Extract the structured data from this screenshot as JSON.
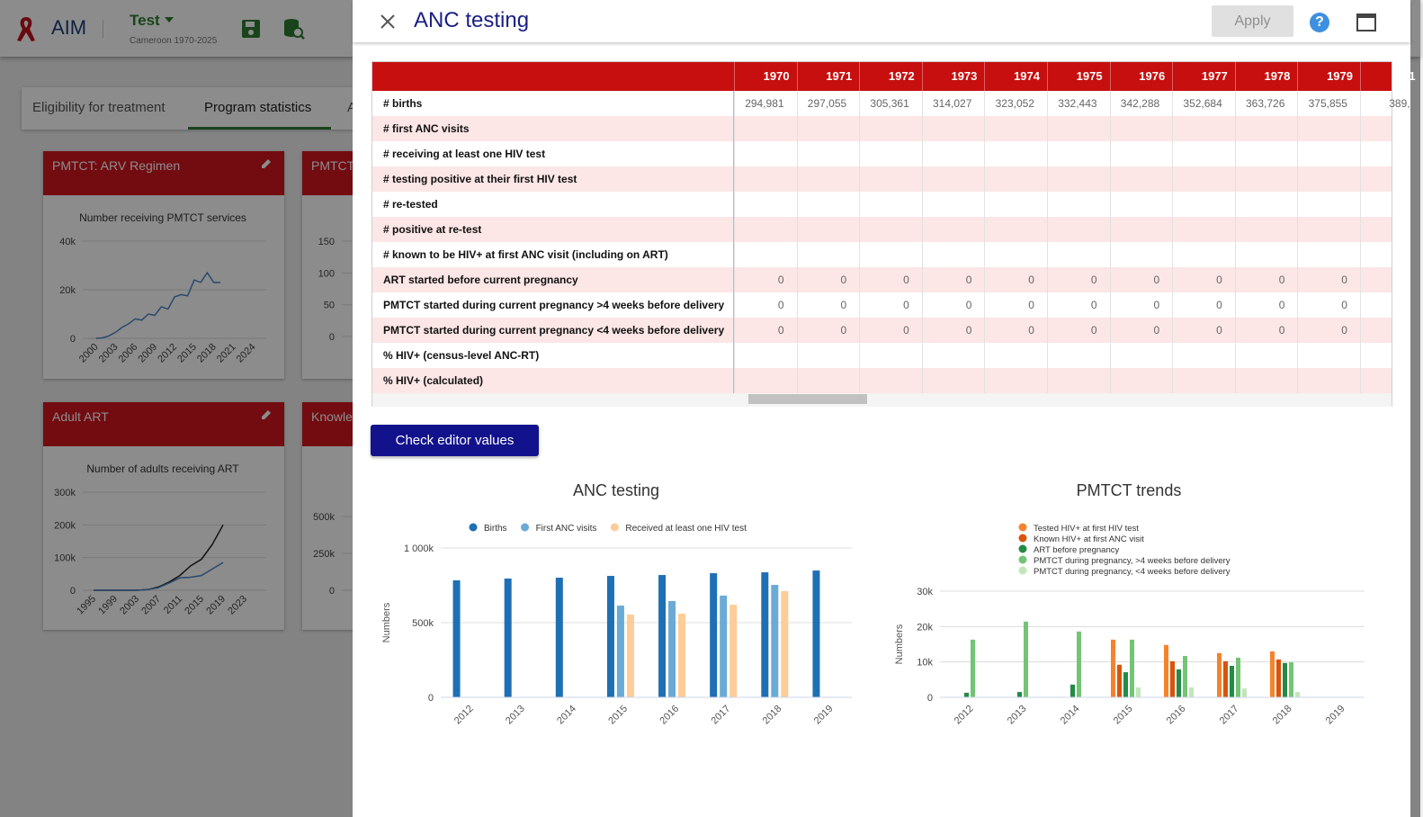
{
  "app": {
    "logo": "AIM",
    "project": "Test",
    "project_subtitle": "Cameroon 1970-2025",
    "tabs": [
      "Eligibility for treatment",
      "Program statistics",
      "A"
    ]
  },
  "cards": [
    {
      "title": "PMTCT: ARV Regimen"
    },
    {
      "title": "PMTCT"
    },
    {
      "title": "Adult ART"
    },
    {
      "title": "Knowle"
    }
  ],
  "panel": {
    "title": "ANC testing",
    "apply": "Apply",
    "help": "?",
    "check_button": "Check editor values",
    "table": {
      "columns": [
        "1970",
        "1971",
        "1972",
        "1973",
        "1974",
        "1975",
        "1976",
        "1977",
        "1978",
        "1979",
        "1"
      ],
      "rows": [
        {
          "label": "# births",
          "cells": [
            "294,981",
            "297,055",
            "305,361",
            "314,027",
            "323,052",
            "332,443",
            "342,288",
            "352,684",
            "363,726",
            "375,855",
            "389,"
          ]
        },
        {
          "label": "# first ANC visits"
        },
        {
          "label": "# receiving at least one HIV test"
        },
        {
          "label": "# testing positive at their first HIV test"
        },
        {
          "label": "# re-tested"
        },
        {
          "label": "# positive at re-test"
        },
        {
          "label": "# known to be HIV+ at first ANC visit (including on ART)"
        },
        {
          "label": "ART started before current pregnancy",
          "cells": [
            0,
            0,
            0,
            0,
            0,
            0,
            0,
            0,
            0,
            0
          ]
        },
        {
          "label": "PMTCT started during current pregnancy >4 weeks before delivery",
          "cells": [
            0,
            0,
            0,
            0,
            0,
            0,
            0,
            0,
            0,
            0
          ]
        },
        {
          "label": "PMTCT started during current pregnancy <4 weeks before delivery",
          "cells": [
            0,
            0,
            0,
            0,
            0,
            0,
            0,
            0,
            0,
            0
          ]
        },
        {
          "label": "% HIV+ (census-level ANC-RT)"
        },
        {
          "label": "% HIV+ (calculated)"
        }
      ]
    }
  },
  "chart_data": [
    {
      "type": "bar",
      "title": "ANC testing",
      "y_label": "Numbers",
      "categories": [
        "2012",
        "2013",
        "2014",
        "2015",
        "2016",
        "2017",
        "2018",
        "2019"
      ],
      "ylim": [
        0,
        1000000
      ],
      "yticks": [
        0,
        {
          "value": 500000,
          "label": "500k"
        },
        {
          "value": 1000000,
          "label": "1 000k"
        }
      ],
      "grid": true,
      "legend": "top",
      "series": [
        {
          "name": "Births",
          "color": "#1f6fb4",
          "values": [
            783000,
            795000,
            801000,
            813000,
            819000,
            831000,
            837000,
            849000
          ]
        },
        {
          "name": "First ANC visits",
          "color": "#6aaad6",
          "values": [
            null,
            null,
            null,
            614000,
            645000,
            681000,
            753000,
            null
          ]
        },
        {
          "name": "Received at least one HIV test",
          "color": "#fdcc98",
          "values": [
            null,
            null,
            null,
            554000,
            560000,
            620000,
            711000,
            null
          ]
        }
      ]
    },
    {
      "type": "bar",
      "title": "PMTCT trends",
      "y_label": "Numbers",
      "categories": [
        "2012",
        "2013",
        "2014",
        "2015",
        "2016",
        "2017",
        "2018",
        "2019"
      ],
      "ylim": [
        0,
        30000
      ],
      "yticks": [
        0,
        {
          "value": 10000,
          "label": "10k"
        },
        {
          "value": 20000,
          "label": "20k"
        },
        {
          "value": 30000,
          "label": "30k"
        }
      ],
      "grid": true,
      "legend": "top-left",
      "series": [
        {
          "name": "Tested HIV+ at first HIV test",
          "color": "#f5832e",
          "values": [
            null,
            null,
            null,
            16300,
            14800,
            12500,
            13000,
            null
          ]
        },
        {
          "name": "Known HIV+ at first ANC visit",
          "color": "#d9540b",
          "values": [
            null,
            null,
            null,
            9200,
            10200,
            10200,
            10700,
            null
          ]
        },
        {
          "name": "ART before pregnancy",
          "color": "#238b45",
          "values": [
            1300,
            1500,
            3600,
            7100,
            7900,
            8900,
            9700,
            null
          ]
        },
        {
          "name": "PMTCT during pregnancy, >4 weeks before delivery",
          "color": "#74c476",
          "values": [
            16300,
            21400,
            18600,
            16300,
            11700,
            11200,
            9900,
            null
          ]
        },
        {
          "name": "PMTCT during pregnancy, <4 weeks before delivery",
          "color": "#c2e6b9",
          "values": [
            null,
            null,
            null,
            2800,
            2800,
            2500,
            1500,
            null
          ]
        }
      ]
    },
    {
      "type": "line",
      "title": "Number receiving PMTCT services",
      "x": [
        2000,
        2001,
        2002,
        2003,
        2004,
        2005,
        2006,
        2007,
        2008,
        2009,
        2010,
        2011,
        2012,
        2013,
        2014,
        2015,
        2016,
        2017,
        2018,
        2019
      ],
      "xlim": [
        1998,
        2026
      ],
      "xticks": [
        2000,
        2003,
        2006,
        2009,
        2012,
        2015,
        2018,
        2021,
        2024
      ],
      "ylim": [
        0,
        40000
      ],
      "yticks": [
        0,
        {
          "value": 20000,
          "label": "20k"
        },
        {
          "value": 40000,
          "label": "40k"
        }
      ],
      "grid": true,
      "series": [
        {
          "color": "#4a86c8",
          "values": [
            0,
            200,
            1000,
            2500,
            4500,
            6000,
            8000,
            7500,
            10000,
            9500,
            13000,
            12000,
            17000,
            18000,
            17500,
            24000,
            23000,
            27000,
            23000,
            23000
          ]
        }
      ]
    },
    {
      "type": "line",
      "ylim": [
        0,
        150
      ],
      "yticks": [
        0,
        50,
        100,
        150
      ],
      "grid": true
    },
    {
      "type": "line",
      "title": "Number of adults receiving ART",
      "x": [
        1995,
        1997,
        1999,
        2001,
        2003,
        2005,
        2007,
        2009,
        2011,
        2013,
        2015,
        2017,
        2019
      ],
      "xlim": [
        1993,
        2027
      ],
      "xticks": [
        1995,
        1999,
        2003,
        2007,
        2011,
        2015,
        2019,
        2023
      ],
      "ylim": [
        0,
        300000
      ],
      "yticks": [
        0,
        {
          "value": 100000,
          "label": "100k"
        },
        {
          "value": 200000,
          "label": "200k"
        },
        {
          "value": 300000,
          "label": "300k"
        }
      ],
      "grid": true,
      "series": [
        {
          "color": "#222222",
          "values": [
            0,
            0,
            0,
            0,
            0,
            2000,
            10000,
            25000,
            45000,
            75000,
            95000,
            140000,
            200000
          ]
        },
        {
          "color": "#4a86c8",
          "values": [
            0,
            0,
            0,
            0,
            0,
            2000,
            8000,
            22000,
            38000,
            40000,
            45000,
            65000,
            85000
          ]
        }
      ]
    },
    {
      "type": "line",
      "ylim": [
        0,
        500000
      ],
      "yticks": [
        0,
        {
          "value": 250000,
          "label": "250k"
        },
        {
          "value": 500000,
          "label": "500k"
        }
      ],
      "grid": true
    }
  ]
}
